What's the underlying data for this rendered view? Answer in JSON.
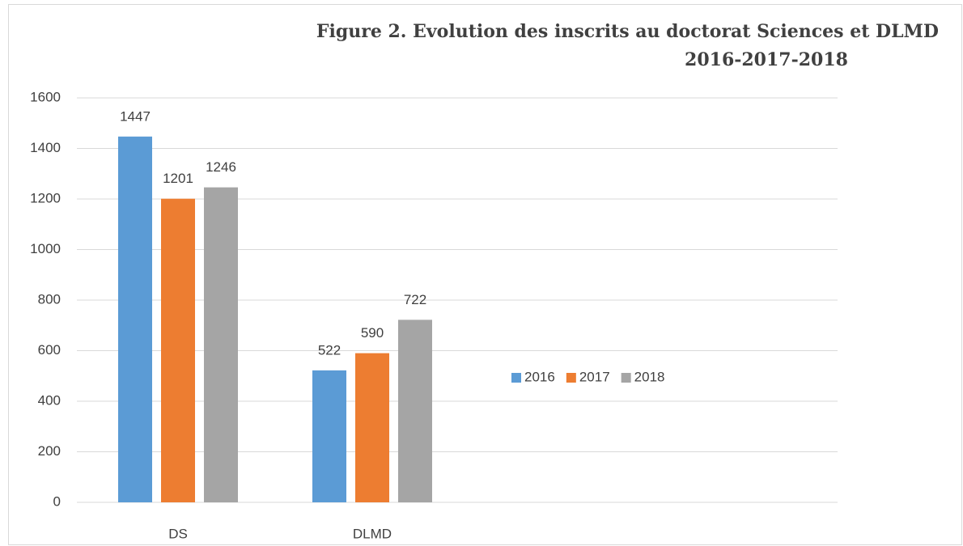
{
  "chart_data": {
    "type": "bar",
    "title": [
      "Figure 2.  Evolution des inscrits au doctorat Sciences et DLMD",
      "2016-2017-2018"
    ],
    "categories": [
      "DS",
      "DLMD",
      null,
      null
    ],
    "series": [
      {
        "name": "2016",
        "color": "#5b9bd5",
        "values": [
          1447,
          522,
          null,
          null
        ]
      },
      {
        "name": "2017",
        "color": "#ed7d31",
        "values": [
          1201,
          590,
          null,
          null
        ]
      },
      {
        "name": "2018",
        "color": "#a5a5a5",
        "values": [
          1246,
          722,
          null,
          null
        ]
      }
    ],
    "ylim": [
      0,
      1600
    ],
    "yticks": [
      0,
      200,
      400,
      600,
      800,
      1000,
      1200,
      1400,
      1600
    ],
    "grid": true,
    "legend": "right"
  }
}
